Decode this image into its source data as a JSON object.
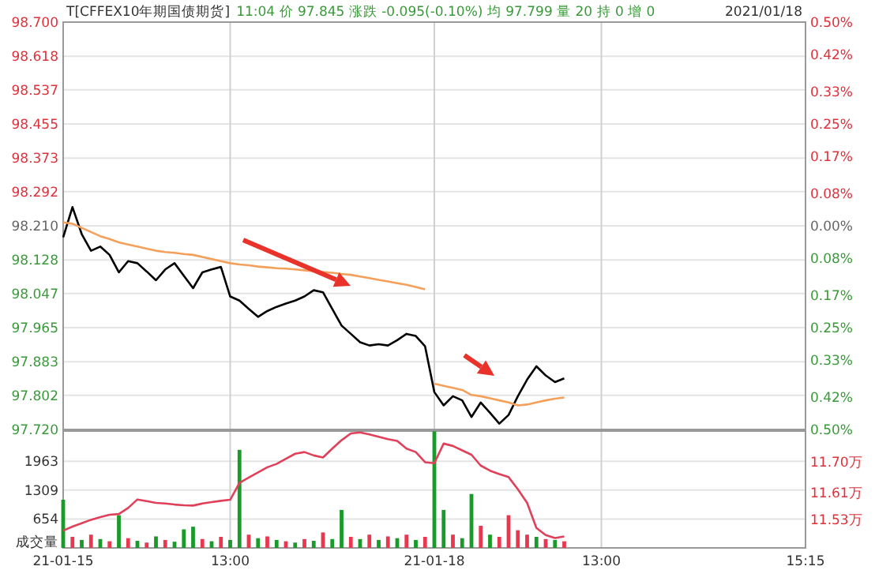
{
  "chart_data": [
    {
      "type": "line",
      "title": "T[CFFEX10年期国债期货]",
      "subtitle": "11:04 价 97.845 涨跌 -0.095(-0.10%) 均 97.799 量 20 持 0 增 0",
      "annotations": [
        "2021/01/18"
      ],
      "categories": [
        null,
        null,
        null,
        null,
        null,
        null,
        null,
        null,
        null,
        null,
        null,
        null,
        null,
        null,
        null,
        null,
        null,
        null,
        null,
        null,
        null,
        null,
        null,
        null,
        null,
        null,
        null,
        null,
        null,
        null,
        null,
        null,
        null,
        null,
        null,
        null,
        null,
        null,
        null,
        null,
        null,
        null,
        null,
        null,
        null,
        null,
        null,
        null,
        null,
        null,
        null,
        null,
        null,
        null,
        null,
        null,
        null,
        null,
        null,
        null,
        null,
        null,
        null,
        null,
        null,
        null,
        null,
        null,
        null,
        null,
        null,
        null,
        null,
        null,
        null,
        null,
        null,
        null,
        null,
        null,
        null
      ],
      "ylim": [
        97.72,
        98.7
      ],
      "yticks": [
        {
          "value": 97.72,
          "label": "97.720"
        },
        97.802,
        97.883,
        97.965,
        98.047,
        98.128,
        {
          "value": 98.21,
          "label": "98.210"
        },
        98.292,
        98.373,
        98.455,
        98.537,
        98.618,
        {
          "value": 98.7,
          "label": "98.700"
        }
      ],
      "y2lim": [
        -0.5,
        0.5
      ],
      "y2ticks": [
        {
          "value": -0.5,
          "label": "0.50%"
        },
        {
          "value": -0.42,
          "label": "0.42%"
        },
        {
          "value": -0.33,
          "label": "0.33%"
        },
        {
          "value": -0.25,
          "label": "0.25%"
        },
        {
          "value": -0.17,
          "label": "0.17%"
        },
        {
          "value": -0.08,
          "label": "0.08%"
        },
        {
          "value": 0,
          "label": "0.00%"
        },
        {
          "value": 0.08,
          "label": "0.08%"
        },
        {
          "value": 0.17,
          "label": "0.17%"
        },
        {
          "value": 0.25,
          "label": "0.25%"
        },
        {
          "value": 0.33,
          "label": "0.33%"
        },
        {
          "value": 0.42,
          "label": "0.42%"
        },
        {
          "value": 0.5,
          "label": "0.50%"
        }
      ],
      "grid": true,
      "tick_labels": "y",
      "series": [
        {
          "color": "#000000",
          "values": [
            98.182,
            98.255,
            98.19,
            98.15,
            98.16,
            98.14,
            98.098,
            98.125,
            98.12,
            98.1,
            98.079,
            98.105,
            98.12,
            98.09,
            98.06,
            98.098,
            98.105,
            98.111,
            98.04,
            98.03,
            98.01,
            97.991,
            98.005,
            98.015,
            98.023,
            98.03,
            98.04,
            98.055,
            98.05,
            98.01,
            97.97,
            97.95,
            97.93,
            97.922,
            97.925,
            97.922,
            97.935,
            97.95,
            97.945,
            97.92,
            97.81,
            97.778,
            97.8,
            97.79,
            97.75,
            97.785,
            97.76,
            97.734,
            97.755,
            97.8,
            97.84,
            97.872,
            97.85,
            97.834,
            97.843,
            null,
            null,
            null,
            null,
            null,
            null,
            null,
            null,
            null,
            null,
            null,
            null,
            null,
            null,
            null,
            null,
            null,
            null,
            null,
            null,
            null,
            null,
            null,
            null,
            null,
            null
          ]
        },
        {
          "color": "#f5a05a",
          "values": [
            98.218,
            98.215,
            98.205,
            98.195,
            98.185,
            98.178,
            98.17,
            98.165,
            98.16,
            98.155,
            98.15,
            98.147,
            98.145,
            98.142,
            98.14,
            98.135,
            98.13,
            98.125,
            98.12,
            98.117,
            98.115,
            98.112,
            98.11,
            98.108,
            98.107,
            98.105,
            98.103,
            98.101,
            98.099,
            98.097,
            98.094,
            98.092,
            98.088,
            98.084,
            98.08,
            98.076,
            98.072,
            98.068,
            98.063,
            98.057,
            null,
            null,
            null,
            null,
            null,
            null,
            null,
            null,
            null,
            null,
            null,
            null,
            null,
            null,
            null,
            null,
            null,
            null,
            null,
            null,
            null,
            null,
            null,
            null,
            null,
            null,
            null,
            null,
            null,
            null,
            null,
            null,
            null,
            null,
            null,
            null,
            null,
            null,
            null,
            null,
            null
          ]
        },
        {
          "color": "#f5a05a",
          "values": [
            null,
            null,
            null,
            null,
            null,
            null,
            null,
            null,
            null,
            null,
            null,
            null,
            null,
            null,
            null,
            null,
            null,
            null,
            null,
            null,
            null,
            null,
            null,
            null,
            null,
            null,
            null,
            null,
            null,
            null,
            null,
            null,
            null,
            null,
            null,
            null,
            null,
            null,
            null,
            null,
            97.83,
            97.825,
            97.82,
            97.815,
            97.803,
            97.8,
            97.795,
            97.79,
            97.785,
            97.778,
            97.78,
            97.785,
            97.79,
            97.794,
            97.797,
            null,
            null,
            null,
            null,
            null,
            null,
            null,
            null,
            null,
            null,
            null,
            null,
            null,
            null,
            null,
            null,
            null,
            null,
            null,
            null,
            null,
            null,
            null,
            null,
            null,
            null
          ]
        }
      ]
    },
    {
      "type": "bar",
      "ylabel": "成交量",
      "categories": [
        "21-01-15",
        null,
        null,
        null,
        null,
        null,
        null,
        null,
        null,
        null,
        null,
        null,
        null,
        null,
        null,
        null,
        null,
        null,
        "13:00",
        null,
        null,
        null,
        null,
        null,
        null,
        null,
        null,
        null,
        null,
        null,
        null,
        null,
        null,
        null,
        null,
        null,
        null,
        null,
        null,
        null,
        "21-01-18",
        null,
        null,
        null,
        null,
        null,
        null,
        null,
        null,
        null,
        null,
        null,
        null,
        null,
        null,
        null,
        null,
        null,
        "13:00",
        null,
        null,
        null,
        null,
        null,
        null,
        null,
        null,
        null,
        null,
        null,
        null,
        null,
        null,
        null,
        null,
        null,
        null,
        null,
        null,
        null,
        "15:15"
      ],
      "ylim": [
        0,
        2645
      ],
      "yticks": [
        654,
        1309,
        1963
      ],
      "y2lim": [
        11.447,
        11.792
      ],
      "y2ticks": [
        {
          "value": 11.53,
          "label": "11.53万"
        },
        {
          "value": 11.61,
          "label": "11.61万"
        },
        {
          "value": 11.7,
          "label": "11.70万"
        }
      ],
      "grid": true,
      "series": [
        {
          "values": [
            1090,
            250,
            180,
            300,
            200,
            150,
            740,
            220,
            160,
            120,
            260,
            180,
            140,
            420,
            480,
            200,
            150,
            250,
            180,
            2220,
            300,
            220,
            260,
            180,
            150,
            120,
            200,
            160,
            350,
            200,
            860,
            250,
            200,
            300,
            180,
            260,
            220,
            300,
            180,
            250,
            2640,
            860,
            300,
            220,
            1220,
            500,
            300,
            250,
            740,
            400,
            300,
            250,
            200,
            180,
            150,
            null,
            null,
            null,
            null,
            null,
            null,
            null,
            null,
            null,
            null,
            null,
            null,
            null,
            null,
            null,
            null,
            null,
            null,
            null,
            null,
            null,
            null,
            null,
            null,
            null,
            null
          ],
          "colors": [
            "#1a9a2a",
            "#e8384f",
            "#1a9a2a",
            "#e8384f",
            "#1a9a2a",
            "#e8384f",
            "#1a9a2a",
            "#e8384f",
            "#1a9a2a",
            "#e8384f",
            "#1a9a2a",
            "#e8384f",
            "#1a9a2a",
            "#1a9a2a",
            "#1a9a2a",
            "#e8384f",
            "#1a9a2a",
            "#e8384f",
            "#1a9a2a",
            "#1a9a2a",
            "#e8384f",
            "#1a9a2a",
            "#e8384f",
            "#1a9a2a",
            "#e8384f",
            "#1a9a2a",
            "#e8384f",
            "#1a9a2a",
            "#e8384f",
            "#1a9a2a",
            "#1a9a2a",
            "#e8384f",
            "#1a9a2a",
            "#e8384f",
            "#1a9a2a",
            "#e8384f",
            "#1a9a2a",
            "#e8384f",
            "#1a9a2a",
            "#e8384f",
            "#1a9a2a",
            "#1a9a2a",
            "#e8384f",
            "#1a9a2a",
            "#1a9a2a",
            "#e8384f",
            "#1a9a2a",
            "#e8384f",
            "#e8384f",
            "#e8384f",
            "#e8384f",
            "#1a9a2a",
            "#e8384f",
            "#1a9a2a",
            "#e8384f",
            null,
            null,
            null,
            null,
            null,
            null,
            null,
            null,
            null,
            null,
            null,
            null,
            null,
            null,
            null,
            null,
            null,
            null,
            null,
            null,
            null,
            null,
            null,
            null,
            null,
            null
          ]
        },
        {
          "type": "line",
          "axis": "y2",
          "color": "#e0405a",
          "values": [
            11.498,
            11.51,
            11.52,
            11.53,
            11.538,
            11.545,
            11.547,
            11.565,
            11.59,
            11.585,
            11.58,
            11.578,
            11.575,
            11.573,
            11.572,
            11.578,
            11.582,
            11.586,
            11.589,
            11.639,
            11.655,
            11.67,
            11.685,
            11.695,
            11.71,
            11.725,
            11.73,
            11.72,
            11.714,
            11.74,
            11.765,
            11.785,
            11.788,
            11.782,
            11.775,
            11.768,
            11.763,
            11.74,
            11.73,
            11.7,
            11.697,
            11.755,
            11.748,
            11.735,
            11.722,
            11.69,
            11.675,
            11.665,
            11.656,
            11.62,
            11.58,
            11.506,
            11.485,
            11.476,
            11.481,
            null,
            null,
            null,
            null,
            null,
            null,
            null,
            null,
            null,
            null,
            null,
            null,
            null,
            null,
            null,
            null,
            null,
            null,
            null,
            null,
            null,
            null,
            null,
            null,
            null,
            null
          ]
        }
      ]
    }
  ]
}
